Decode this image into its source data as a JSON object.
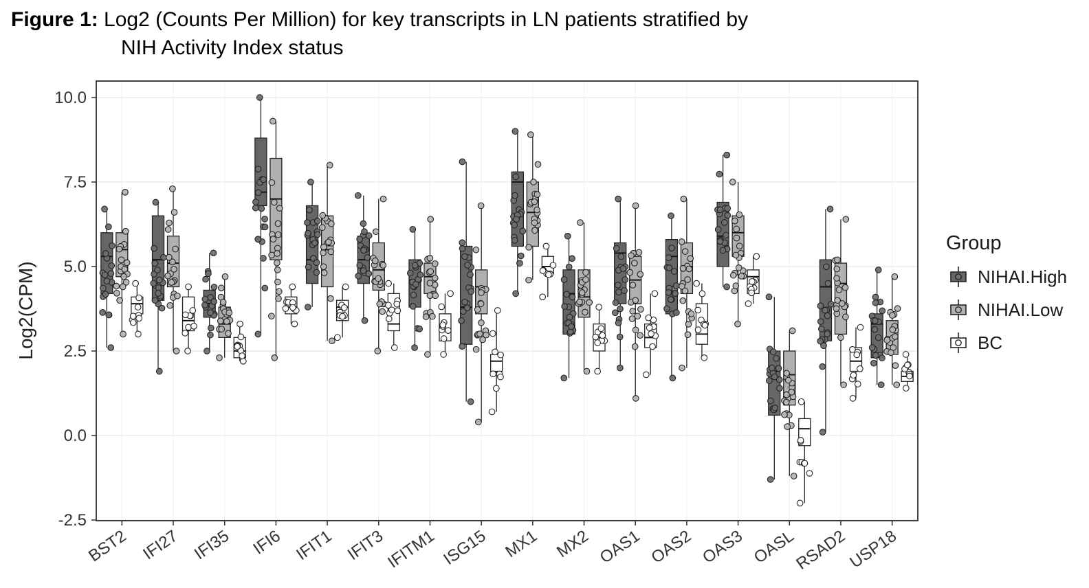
{
  "figure": {
    "label": "Figure 1:",
    "title": "Log2 (Counts Per Million) for key transcripts in LN patients stratified by",
    "subtitle": "NIH Activity Index status"
  },
  "chart_data": {
    "type": "boxplot",
    "title": "Figure 1: Log2 (Counts Per Million) for key transcripts in LN patients stratified by NIH Activity Index status",
    "xlabel": "",
    "ylabel": "Log2(CPM)",
    "ylim": [
      -2.5,
      10.0
    ],
    "yticks": [
      10.0,
      7.5,
      5.0,
      2.5,
      0.0,
      -2.5
    ],
    "grid": true,
    "legend_position": "right",
    "legend_title": "Group",
    "panel_border": "#2b2b2b",
    "grid_color": "#e6e6e6",
    "categories": [
      "BST2",
      "IFI27",
      "IFI35",
      "IFI6",
      "IFIT1",
      "IFIT3",
      "IFITM1",
      "ISG15",
      "MX1",
      "MX2",
      "OAS1",
      "OAS2",
      "OAS3",
      "OASL",
      "RSAD2",
      "USP18"
    ],
    "groups": [
      {
        "name": "NIHAI.High",
        "box_fill": "#666666",
        "point_fill": "#6f6f6f",
        "n_points": 18,
        "five_num": [
          [
            2.6,
            4.2,
            5.3,
            6.0,
            6.7
          ],
          [
            1.9,
            4.0,
            5.2,
            6.5,
            6.9
          ],
          [
            2.5,
            3.5,
            3.9,
            4.3,
            5.4
          ],
          [
            3.0,
            6.8,
            7.2,
            8.8,
            10.0
          ],
          [
            3.8,
            4.5,
            5.2,
            6.8,
            7.5
          ],
          [
            3.4,
            4.5,
            5.2,
            5.9,
            7.1
          ],
          [
            2.6,
            3.8,
            4.6,
            5.2,
            6.1
          ],
          [
            1.0,
            2.7,
            3.8,
            5.6,
            8.1
          ],
          [
            4.2,
            5.6,
            7.5,
            7.8,
            9.0
          ],
          [
            1.7,
            3.0,
            4.2,
            4.9,
            5.9
          ],
          [
            2.0,
            3.9,
            5.4,
            5.7,
            7.0
          ],
          [
            1.7,
            3.6,
            5.3,
            5.8,
            6.5
          ],
          [
            4.4,
            5.0,
            5.9,
            6.9,
            8.3
          ],
          [
            -1.3,
            0.6,
            1.9,
            2.5,
            4.1
          ],
          [
            0.1,
            2.8,
            4.4,
            5.2,
            6.7
          ],
          [
            1.5,
            2.3,
            3.3,
            3.6,
            4.9
          ]
        ]
      },
      {
        "name": "NIHAI.Low",
        "box_fill": "#b0b0b0",
        "point_fill": "#b5b5b5",
        "n_points": 18,
        "five_num": [
          [
            3.0,
            4.7,
            5.5,
            6.0,
            7.2
          ],
          [
            2.5,
            4.4,
            5.1,
            5.9,
            7.3
          ],
          [
            2.3,
            2.9,
            3.3,
            3.8,
            4.7
          ],
          [
            2.3,
            5.2,
            7.0,
            8.2,
            9.3
          ],
          [
            2.8,
            4.4,
            5.5,
            6.5,
            8.0
          ],
          [
            2.5,
            4.3,
            4.9,
            5.7,
            7.0
          ],
          [
            2.4,
            4.2,
            4.7,
            5.1,
            6.4
          ],
          [
            0.4,
            3.6,
            4.4,
            4.9,
            6.8
          ],
          [
            4.6,
            5.6,
            6.6,
            7.5,
            8.9
          ],
          [
            1.9,
            3.5,
            4.1,
            4.9,
            6.3
          ],
          [
            1.1,
            3.9,
            4.6,
            5.3,
            6.8
          ],
          [
            2.0,
            4.2,
            5.0,
            5.7,
            7.0
          ],
          [
            3.3,
            5.3,
            6.0,
            6.5,
            7.5
          ],
          [
            -1.2,
            0.9,
            1.8,
            2.5,
            3.1
          ],
          [
            1.5,
            3.0,
            4.5,
            5.1,
            6.4
          ],
          [
            1.5,
            2.4,
            2.9,
            3.4,
            4.7
          ]
        ]
      },
      {
        "name": "BC",
        "box_fill": "#ffffff",
        "point_fill": "#ffffff",
        "n_points": 9,
        "five_num": [
          [
            3.0,
            3.6,
            3.9,
            4.1,
            4.5
          ],
          [
            2.5,
            3.1,
            3.4,
            4.1,
            4.4
          ],
          [
            2.2,
            2.3,
            2.5,
            2.9,
            3.3
          ],
          [
            3.3,
            3.6,
            3.8,
            4.1,
            4.4
          ],
          [
            2.9,
            3.4,
            3.8,
            4.0,
            4.4
          ],
          [
            2.6,
            3.1,
            3.3,
            4.2,
            4.5
          ],
          [
            2.4,
            2.8,
            3.1,
            3.6,
            4.2
          ],
          [
            0.7,
            1.9,
            2.2,
            2.4,
            3.7
          ],
          [
            4.1,
            4.8,
            5.0,
            5.3,
            5.6
          ],
          [
            1.9,
            2.5,
            2.9,
            3.3,
            3.8
          ],
          [
            1.8,
            2.6,
            2.9,
            3.3,
            4.2
          ],
          [
            2.3,
            2.7,
            3.0,
            3.9,
            4.5
          ],
          [
            3.9,
            4.2,
            4.7,
            4.9,
            5.3
          ],
          [
            -2.0,
            -0.3,
            0.2,
            0.5,
            1.0
          ],
          [
            1.1,
            1.9,
            2.2,
            2.6,
            3.2
          ],
          [
            1.4,
            1.6,
            1.75,
            1.9,
            2.4
          ]
        ]
      }
    ]
  }
}
